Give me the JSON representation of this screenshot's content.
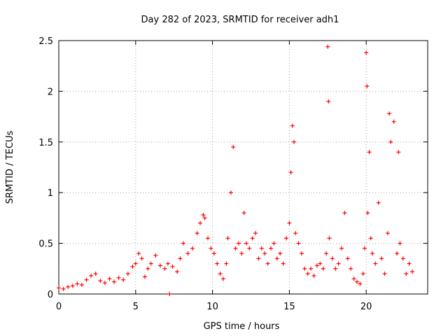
{
  "chart_data": {
    "type": "scatter",
    "title": "Day 282 of 2023, SRMTID for receiver adh1",
    "xlabel": "GPS time / hours",
    "ylabel": "SRMTID / TECUs",
    "xlim": [
      0,
      24
    ],
    "ylim": [
      0,
      2.5
    ],
    "xticks": [
      0,
      5,
      10,
      15,
      20
    ],
    "xtick_labels": [
      "0",
      "5",
      "10",
      "15",
      "20"
    ],
    "yticks": [
      0,
      0.5,
      1,
      1.5,
      2,
      2.5
    ],
    "ytick_labels": [
      "0",
      "0.5",
      "1",
      "1.5",
      "2",
      "2.5"
    ],
    "grid": true,
    "marker": "+",
    "series_color": "#ff0000",
    "series": [
      {
        "name": "adh1",
        "x": [
          0.0,
          0.3,
          0.6,
          0.9,
          1.2,
          1.5,
          1.8,
          2.1,
          2.4,
          2.7,
          3.0,
          3.3,
          3.6,
          3.9,
          4.2,
          4.5,
          4.8,
          5.0,
          5.2,
          5.4,
          5.6,
          5.8,
          6.0,
          6.3,
          6.6,
          6.9,
          7.1,
          7.4,
          7.7,
          7.9,
          8.1,
          8.4,
          8.7,
          9.0,
          9.2,
          9.4,
          9.5,
          9.7,
          9.9,
          10.1,
          10.3,
          10.5,
          10.7,
          10.9,
          11.0,
          11.2,
          11.35,
          11.5,
          11.7,
          11.9,
          12.05,
          12.2,
          12.4,
          12.6,
          12.8,
          13.0,
          13.2,
          13.4,
          13.6,
          13.8,
          14.0,
          14.2,
          14.4,
          14.6,
          14.8,
          15.0,
          15.1,
          15.2,
          15.3,
          15.4,
          15.6,
          15.8,
          16.0,
          16.2,
          16.4,
          16.6,
          16.8,
          17.0,
          17.2,
          17.4,
          17.5,
          17.55,
          17.6,
          17.8,
          18.0,
          18.2,
          18.4,
          18.6,
          18.8,
          19.0,
          19.2,
          19.4,
          19.6,
          19.8,
          19.9,
          20.0,
          20.05,
          20.1,
          20.2,
          20.3,
          20.4,
          20.6,
          20.8,
          21.0,
          21.2,
          21.4,
          21.5,
          21.6,
          21.8,
          22.0,
          22.1,
          22.2,
          22.4,
          22.6,
          22.8,
          23.0,
          7.2
        ],
        "y": [
          0.06,
          0.05,
          0.07,
          0.08,
          0.1,
          0.09,
          0.14,
          0.18,
          0.2,
          0.13,
          0.11,
          0.15,
          0.12,
          0.16,
          0.14,
          0.2,
          0.27,
          0.3,
          0.4,
          0.35,
          0.17,
          0.25,
          0.3,
          0.38,
          0.28,
          0.25,
          0.3,
          0.27,
          0.22,
          0.35,
          0.5,
          0.4,
          0.45,
          0.6,
          0.7,
          0.78,
          0.75,
          0.55,
          0.45,
          0.4,
          0.3,
          0.2,
          0.15,
          0.3,
          0.55,
          1.0,
          1.45,
          0.45,
          0.5,
          0.4,
          0.8,
          0.5,
          0.45,
          0.55,
          0.6,
          0.35,
          0.45,
          0.4,
          0.3,
          0.45,
          0.5,
          0.35,
          0.4,
          0.3,
          0.55,
          0.7,
          1.2,
          1.66,
          1.5,
          0.6,
          0.5,
          0.4,
          0.25,
          0.2,
          0.25,
          0.18,
          0.28,
          0.3,
          0.25,
          0.4,
          2.44,
          1.9,
          0.55,
          0.35,
          0.25,
          0.3,
          0.45,
          0.8,
          0.35,
          0.25,
          0.15,
          0.12,
          0.1,
          0.2,
          0.45,
          2.38,
          2.05,
          0.8,
          1.4,
          0.55,
          0.4,
          0.3,
          0.9,
          0.35,
          0.2,
          0.6,
          1.78,
          1.5,
          1.7,
          0.4,
          1.4,
          0.5,
          0.35,
          0.2,
          0.3,
          0.22,
          0.0
        ]
      }
    ]
  }
}
